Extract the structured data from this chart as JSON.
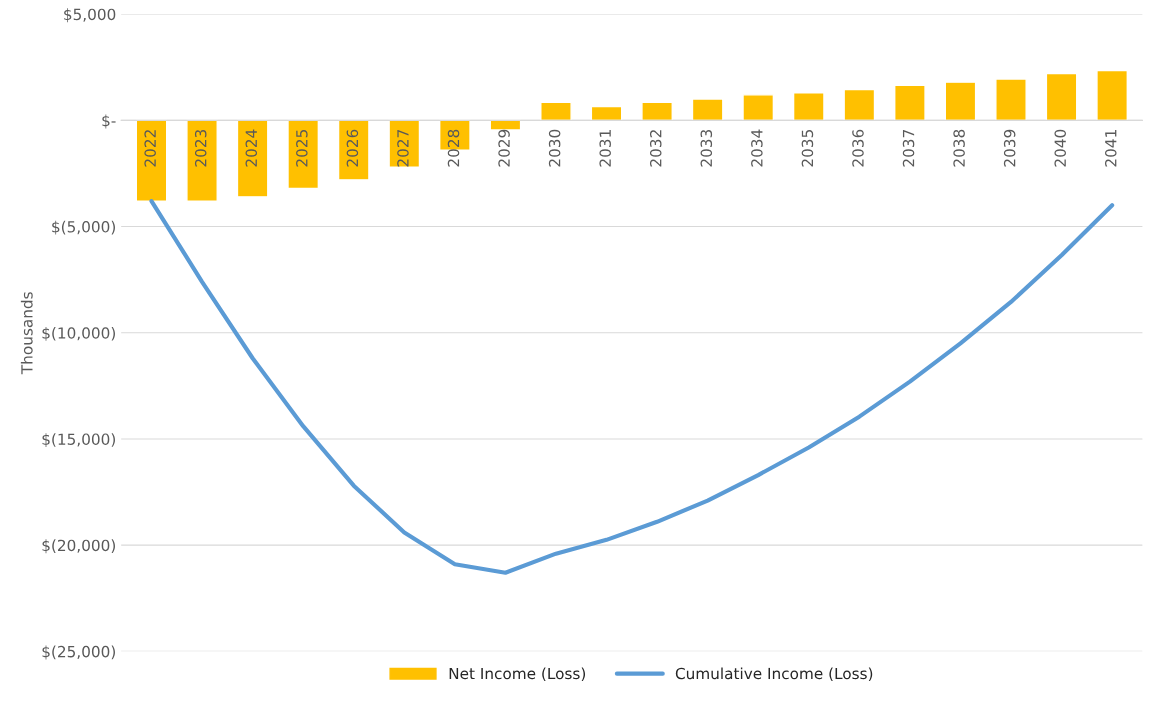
{
  "chart_data": {
    "type": "bar",
    "ylabel": "Thousands",
    "categories": [
      "2022",
      "2023",
      "2024",
      "2025",
      "2026",
      "2027",
      "2028",
      "2029",
      "2030",
      "2031",
      "2032",
      "2033",
      "2034",
      "2035",
      "2036",
      "2037",
      "2038",
      "2039",
      "2040",
      "2041"
    ],
    "series": [
      {
        "name": "Net Income (Loss)",
        "color": "#ffc000",
        "values": [
          -3800,
          -3800,
          -3600,
          -3200,
          -2800,
          -2200,
          -1400,
          -450,
          850,
          650,
          850,
          1000,
          1200,
          1300,
          1450,
          1650,
          1800,
          1950,
          2200,
          2350
        ]
      },
      {
        "name": "Cumulative Income (Loss)",
        "type": "line",
        "color": "#5b9bd5",
        "values": [
          -3800,
          -7600,
          -11200,
          -14400,
          -17200,
          -19400,
          -20900,
          -21300,
          -20400,
          -19750,
          -18900,
          -17900,
          -16700,
          -15400,
          -13950,
          -12300,
          -10500,
          -8550,
          -6350,
          -4000
        ]
      }
    ],
    "ylim": [
      -25000,
      5000
    ],
    "yticks": [
      {
        "value": 5000,
        "label": "$5,000"
      },
      {
        "value": 0,
        "label": "$-"
      },
      {
        "value": -5000,
        "label": "$(5,000)"
      },
      {
        "value": -10000,
        "label": "$(10,000)"
      },
      {
        "value": -15000,
        "label": "$(15,000)"
      },
      {
        "value": -20000,
        "label": "$(20,000)"
      },
      {
        "value": -25000,
        "label": "$(25,000)"
      }
    ],
    "grid": "y",
    "legend": "bottom",
    "marker": "none",
    "line_style": "solid"
  }
}
